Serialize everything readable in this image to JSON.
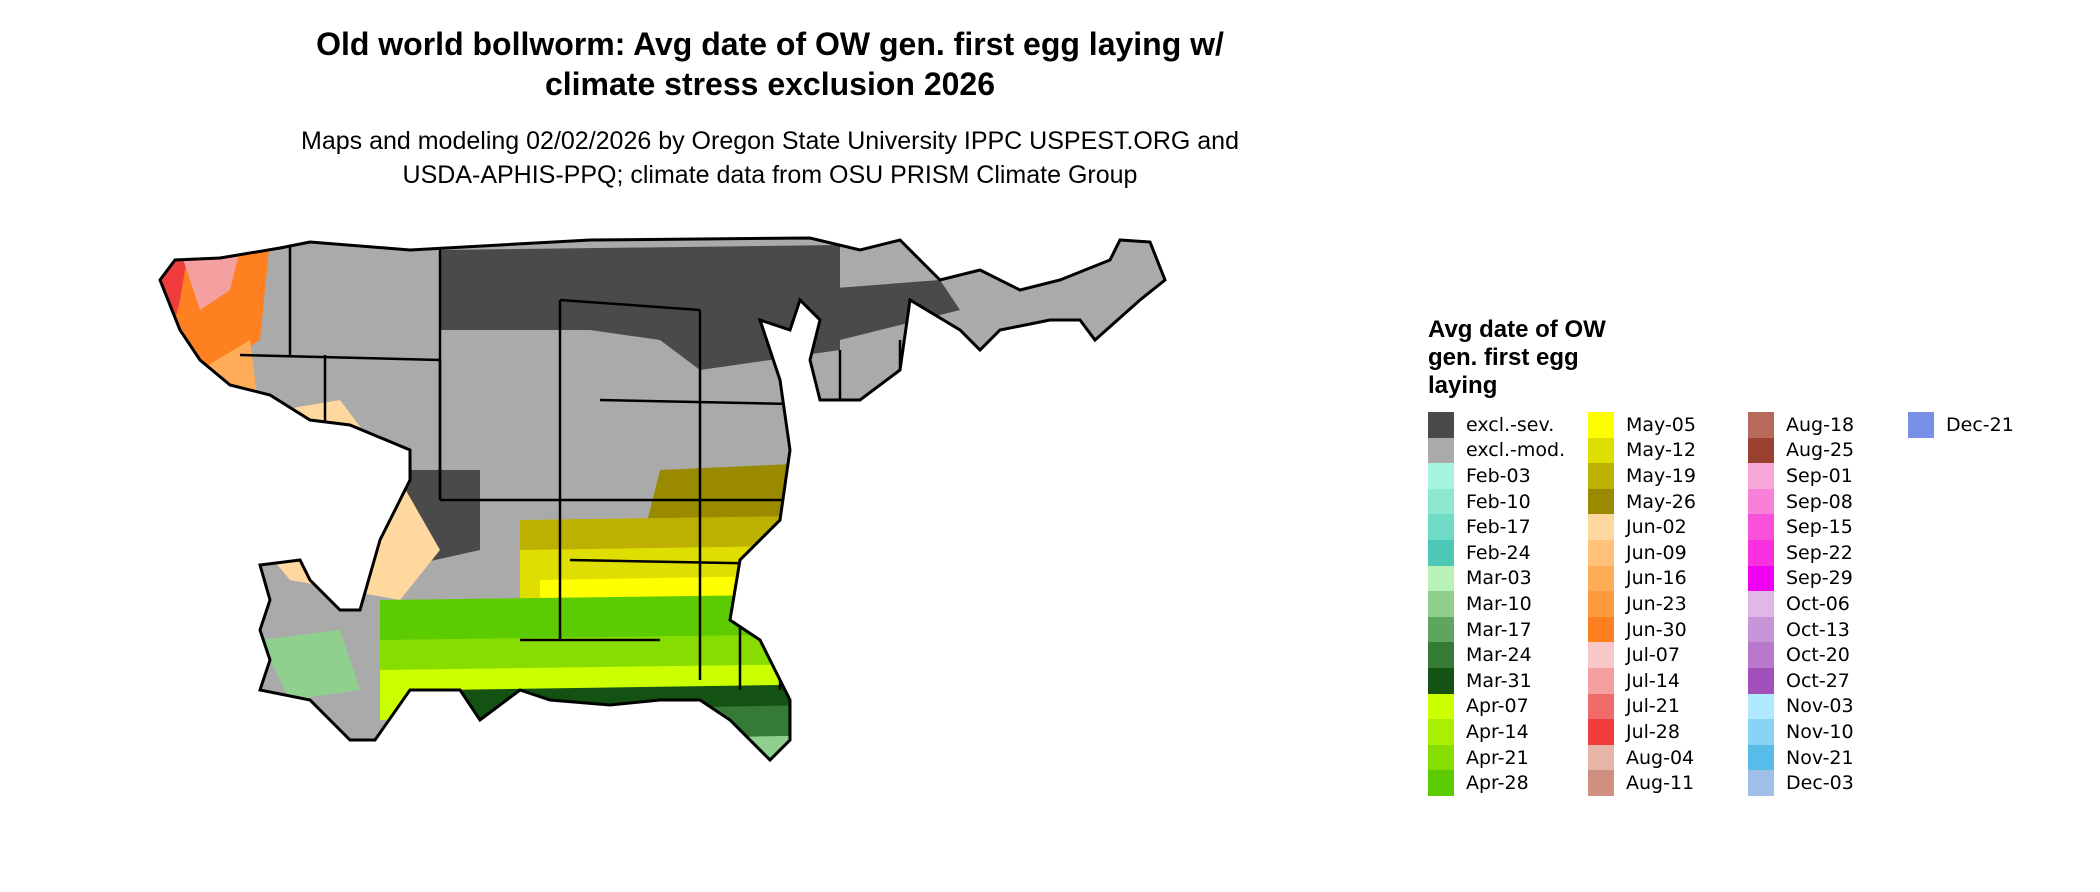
{
  "title": {
    "line1": "Old world bollworm: Avg date of OW gen. first egg laying w/",
    "line2": "climate stress exclusion 2026"
  },
  "subtitle": {
    "line1": "Maps and modeling 02/02/2026 by Oregon State University IPPC USPEST.ORG and",
    "line2": "USDA-APHIS-PPQ; climate data from OSU PRISM Climate Group"
  },
  "legend": {
    "title": "Avg date of OW gen. first egg laying",
    "columns": [
      [
        {
          "label": "excl.-sev.",
          "color": "#4a4a4a"
        },
        {
          "label": "excl.-mod.",
          "color": "#aaaaaa"
        },
        {
          "label": "Feb-03",
          "color": "#a6f5e0"
        },
        {
          "label": "Feb-10",
          "color": "#8de8d2"
        },
        {
          "label": "Feb-17",
          "color": "#6fdac6"
        },
        {
          "label": "Feb-24",
          "color": "#4ec8b6"
        },
        {
          "label": "Mar-03",
          "color": "#b8f2b8"
        },
        {
          "label": "Mar-10",
          "color": "#8fd08f"
        },
        {
          "label": "Mar-17",
          "color": "#5fa55f"
        },
        {
          "label": "Mar-24",
          "color": "#357a35"
        },
        {
          "label": "Mar-31",
          "color": "#145214"
        },
        {
          "label": "Apr-07",
          "color": "#ccff00"
        },
        {
          "label": "Apr-14",
          "color": "#aaee00"
        },
        {
          "label": "Apr-21",
          "color": "#88dd00"
        },
        {
          "label": "Apr-28",
          "color": "#5ccc00"
        }
      ],
      [
        {
          "label": "May-05",
          "color": "#ffff00"
        },
        {
          "label": "May-12",
          "color": "#dede00"
        },
        {
          "label": "May-19",
          "color": "#bdb000"
        },
        {
          "label": "May-26",
          "color": "#9a8a00"
        },
        {
          "label": "Jun-02",
          "color": "#ffd8a0"
        },
        {
          "label": "Jun-09",
          "color": "#ffc278"
        },
        {
          "label": "Jun-16",
          "color": "#ffac58"
        },
        {
          "label": "Jun-23",
          "color": "#ff9a40"
        },
        {
          "label": "Jun-30",
          "color": "#ff8020"
        },
        {
          "label": "Jul-07",
          "color": "#f8c8c8"
        },
        {
          "label": "Jul-14",
          "color": "#f4a0a0"
        },
        {
          "label": "Jul-21",
          "color": "#f06a6a"
        },
        {
          "label": "Jul-28",
          "color": "#f03c3c"
        },
        {
          "label": "Aug-04",
          "color": "#e8b4a8"
        },
        {
          "label": "Aug-11",
          "color": "#d09080"
        }
      ],
      [
        {
          "label": "Aug-18",
          "color": "#b86a5a"
        },
        {
          "label": "Aug-25",
          "color": "#9a4030"
        },
        {
          "label": "Sep-01",
          "color": "#f8a8d8"
        },
        {
          "label": "Sep-08",
          "color": "#f880d8"
        },
        {
          "label": "Sep-15",
          "color": "#f850d8"
        },
        {
          "label": "Sep-22",
          "color": "#f830e0"
        },
        {
          "label": "Sep-29",
          "color": "#f000f0"
        },
        {
          "label": "Oct-06",
          "color": "#e0b8e8"
        },
        {
          "label": "Oct-13",
          "color": "#c894d8"
        },
        {
          "label": "Oct-20",
          "color": "#b878cc"
        },
        {
          "label": "Oct-27",
          "color": "#a050b8"
        },
        {
          "label": "Nov-03",
          "color": "#b0e8ff"
        },
        {
          "label": "Nov-10",
          "color": "#88d4f4"
        },
        {
          "label": "Nov-21",
          "color": "#58bce8"
        },
        {
          "label": "Dec-03",
          "color": "#a0c0e8"
        }
      ],
      [
        {
          "label": "Dec-21",
          "color": "#7890e8"
        }
      ]
    ]
  },
  "map": {
    "boundary_color": "#000000",
    "colors": {
      "excl_sev": "#4a4a4a",
      "excl_mod": "#aaaaaa",
      "feb_10": "#8de8d2",
      "feb_24": "#4ec8b6",
      "mar_10": "#8fd08f",
      "mar_24": "#357a35",
      "mar_31": "#145214",
      "apr_07": "#ccff00",
      "apr_14": "#aaee00",
      "apr_21": "#88dd00",
      "apr_28": "#5ccc00",
      "may_05": "#ffff00",
      "may_12": "#dede00",
      "may_19": "#bdb000",
      "may_26": "#9a8a00",
      "jun_02": "#ffd8a0",
      "jun_16": "#ffac58",
      "jun_30": "#ff8020",
      "jul_14": "#f4a0a0",
      "jul_28": "#f03c3c"
    }
  }
}
